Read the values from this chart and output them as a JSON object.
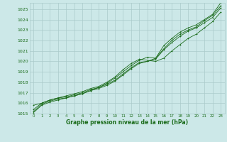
{
  "xlabel": "Graphe pression niveau de la mer (hPa)",
  "bg_color": "#cce8e8",
  "grid_color": "#aacaca",
  "line_color": "#1a6b1a",
  "text_color": "#1a6b1a",
  "ylim": [
    1015,
    1025.6
  ],
  "xlim": [
    -0.5,
    23.5
  ],
  "yticks": [
    1015,
    1016,
    1017,
    1018,
    1019,
    1020,
    1021,
    1022,
    1023,
    1024,
    1025
  ],
  "xticks": [
    0,
    1,
    2,
    3,
    4,
    5,
    6,
    7,
    8,
    9,
    10,
    11,
    12,
    13,
    14,
    15,
    16,
    17,
    18,
    19,
    20,
    21,
    22,
    23
  ],
  "series": [
    [
      1015.8,
      1016.0,
      1016.3,
      1016.5,
      1016.6,
      1016.8,
      1017.0,
      1017.3,
      1017.5,
      1017.9,
      1018.4,
      1019.0,
      1019.6,
      1020.1,
      1020.4,
      1020.3,
      1021.5,
      1022.2,
      1022.8,
      1023.2,
      1023.5,
      1024.0,
      1024.5,
      1025.6
    ],
    [
      1015.2,
      1015.9,
      1016.2,
      1016.4,
      1016.5,
      1016.7,
      1016.9,
      1017.2,
      1017.4,
      1017.7,
      1018.1,
      1018.7,
      1019.3,
      1019.8,
      1020.0,
      1020.2,
      1021.1,
      1021.8,
      1022.4,
      1022.9,
      1023.2,
      1023.7,
      1024.2,
      1025.1
    ],
    [
      1015.4,
      1016.0,
      1016.3,
      1016.5,
      1016.7,
      1016.9,
      1017.1,
      1017.4,
      1017.6,
      1018.0,
      1018.5,
      1019.2,
      1019.8,
      1020.2,
      1020.1,
      1020.0,
      1020.3,
      1021.0,
      1021.6,
      1022.2,
      1022.6,
      1023.2,
      1023.8,
      1024.7
    ],
    [
      1015.1,
      1015.8,
      1016.1,
      1016.3,
      1016.5,
      1016.7,
      1016.9,
      1017.2,
      1017.5,
      1017.8,
      1018.2,
      1018.8,
      1019.4,
      1019.9,
      1020.0,
      1020.3,
      1021.2,
      1022.0,
      1022.6,
      1023.0,
      1023.3,
      1023.9,
      1024.4,
      1025.3
    ]
  ]
}
